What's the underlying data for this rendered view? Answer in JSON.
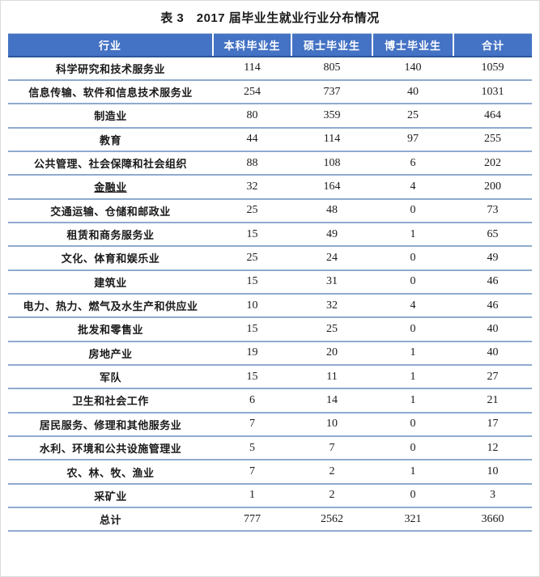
{
  "page": {
    "background": "#ffffff",
    "border_color": "#dcdcdc"
  },
  "title": "表 3　2017 届毕业生就业行业分布情况",
  "colors": {
    "header_bg": "#4472c4",
    "header_text": "#ffffff",
    "row_line": "#8faacf",
    "header_bottom_line": "#2b579a"
  },
  "table": {
    "header": {
      "columns": [
        "行业",
        "本科毕业生",
        "硕士毕业生",
        "博士毕业生",
        "合计"
      ]
    },
    "rows": [
      {
        "industry": "科学研究和技术服务业",
        "values": [
          "114",
          "805",
          "140",
          "1059"
        ],
        "underline": false,
        "is_total": false
      },
      {
        "industry": "信息传输、软件和信息技术服务业",
        "values": [
          "254",
          "737",
          "40",
          "1031"
        ],
        "underline": false,
        "is_total": false
      },
      {
        "industry": "制造业",
        "values": [
          "80",
          "359",
          "25",
          "464"
        ],
        "underline": false,
        "is_total": false
      },
      {
        "industry": "教育",
        "values": [
          "44",
          "114",
          "97",
          "255"
        ],
        "underline": false,
        "is_total": false
      },
      {
        "industry": "公共管理、社会保障和社会组织",
        "values": [
          "88",
          "108",
          "6",
          "202"
        ],
        "underline": false,
        "is_total": false
      },
      {
        "industry": "金融业",
        "values": [
          "32",
          "164",
          "4",
          "200"
        ],
        "underline": true,
        "is_total": false
      },
      {
        "industry": "交通运输、仓储和邮政业",
        "values": [
          "25",
          "48",
          "0",
          "73"
        ],
        "underline": false,
        "is_total": false
      },
      {
        "industry": "租赁和商务服务业",
        "values": [
          "15",
          "49",
          "1",
          "65"
        ],
        "underline": false,
        "is_total": false
      },
      {
        "industry": "文化、体育和娱乐业",
        "values": [
          "25",
          "24",
          "0",
          "49"
        ],
        "underline": false,
        "is_total": false
      },
      {
        "industry": "建筑业",
        "values": [
          "15",
          "31",
          "0",
          "46"
        ],
        "underline": false,
        "is_total": false
      },
      {
        "industry": "电力、热力、燃气及水生产和供应业",
        "values": [
          "10",
          "32",
          "4",
          "46"
        ],
        "underline": false,
        "is_total": false
      },
      {
        "industry": "批发和零售业",
        "values": [
          "15",
          "25",
          "0",
          "40"
        ],
        "underline": false,
        "is_total": false
      },
      {
        "industry": "房地产业",
        "values": [
          "19",
          "20",
          "1",
          "40"
        ],
        "underline": false,
        "is_total": false
      },
      {
        "industry": "军队",
        "values": [
          "15",
          "11",
          "1",
          "27"
        ],
        "underline": false,
        "is_total": false
      },
      {
        "industry": "卫生和社会工作",
        "values": [
          "6",
          "14",
          "1",
          "21"
        ],
        "underline": false,
        "is_total": false
      },
      {
        "industry": "居民服务、修理和其他服务业",
        "values": [
          "7",
          "10",
          "0",
          "17"
        ],
        "underline": false,
        "is_total": false
      },
      {
        "industry": "水利、环境和公共设施管理业",
        "values": [
          "5",
          "7",
          "0",
          "12"
        ],
        "underline": false,
        "is_total": false
      },
      {
        "industry": "农、林、牧、渔业",
        "values": [
          "7",
          "2",
          "1",
          "10"
        ],
        "underline": false,
        "is_total": false
      },
      {
        "industry": "采矿业",
        "values": [
          "1",
          "2",
          "0",
          "3"
        ],
        "underline": false,
        "is_total": false
      },
      {
        "industry": "总计",
        "values": [
          "777",
          "2562",
          "321",
          "3660"
        ],
        "underline": false,
        "is_total": true
      }
    ]
  }
}
